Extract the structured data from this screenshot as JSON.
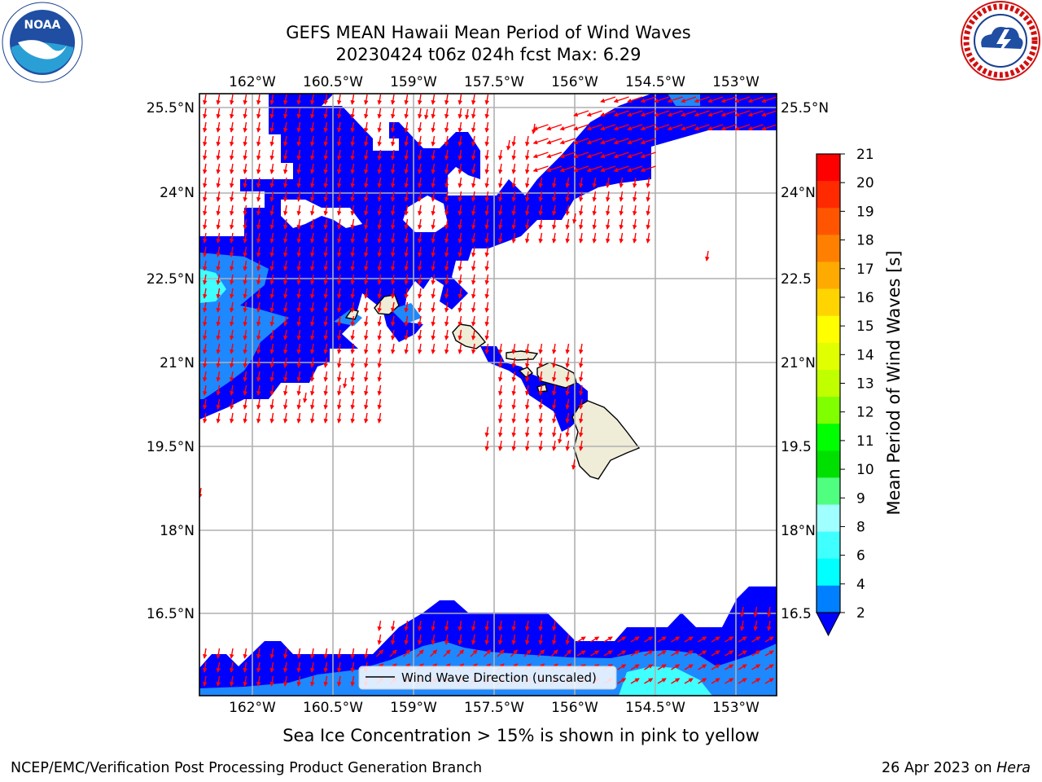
{
  "header": {
    "title_line1": "GEFS MEAN Hawaii Mean Period of Wind Waves",
    "title_line2": "20230424 t06z 024h fcst   Max: 6.29"
  },
  "logos": {
    "left_icon": "noaa-logo",
    "left_text": "NOAA",
    "right_icon": "nws-logo",
    "right_text": "NATIONAL WEATHER SERVICE"
  },
  "map": {
    "lon_ticks": [
      "162°W",
      "160.5°W",
      "159°W",
      "157.5°W",
      "156°W",
      "154.5°W",
      "153°W"
    ],
    "lat_ticks_left": [
      "25.5°N",
      "24°N",
      "22.5°N",
      "21°N",
      "19.5°N",
      "18°N",
      "16.5°N"
    ],
    "lat_ticks_right": [
      "25.5°N",
      "24°N",
      "22.5",
      "21°N",
      "19.5",
      "18°N",
      "16.5"
    ],
    "legend_label": "Wind Wave Direction (unscaled)",
    "arrow_color": "#ff0000",
    "land_color": "#efecd8",
    "ocean_zero_color": "#ffffff"
  },
  "colorbar": {
    "label": "Mean Period of Wind Waves [s]",
    "ticks": [
      "21",
      "20",
      "19",
      "18",
      "17",
      "16",
      "15",
      "14",
      "13",
      "12",
      "11",
      "10",
      "9",
      "8",
      "6",
      "4",
      "2"
    ],
    "colors": [
      "#ff0000",
      "#ff2a00",
      "#ff5500",
      "#ff8000",
      "#ffaa00",
      "#ffd400",
      "#ffff00",
      "#e0ff00",
      "#c0ff00",
      "#80ff00",
      "#00ff00",
      "#00e000",
      "#50ff80",
      "#a0ffff",
      "#40ffff",
      "#00ffff",
      "#0080ff"
    ],
    "extend_color": "#0000ff"
  },
  "caption": "Sea Ice Concentration > 15% is shown in pink to yellow",
  "footer": {
    "left": "NCEP/EMC/Verification Post Processing Product Generation Branch",
    "right_prefix": "26 Apr 2023 on ",
    "right_machine": "Hera"
  }
}
